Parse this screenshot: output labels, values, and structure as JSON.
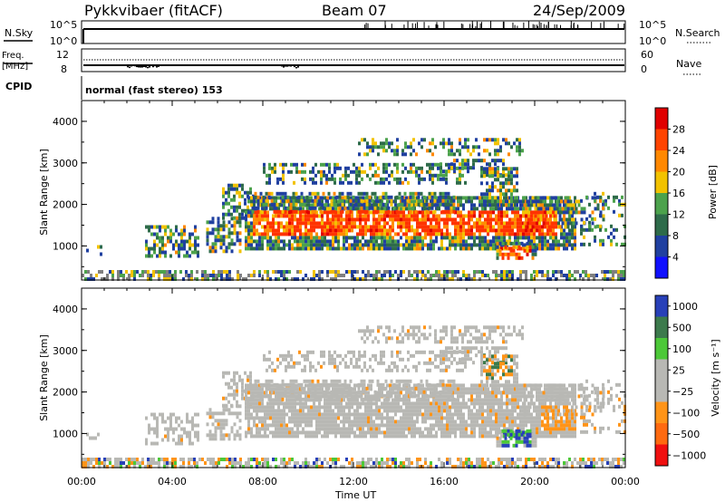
{
  "header": {
    "station": "Pykkvibaer (fitACF)",
    "beam": "Beam 07",
    "date": "24/Sep/2009"
  },
  "status_panels": {
    "nsky": {
      "label": "N.Sky",
      "ticks": [
        "10^5",
        "10^0"
      ]
    },
    "nsearch": {
      "label": "N.Search",
      "ticks": [
        "10^5",
        "10^0"
      ]
    },
    "freq": {
      "label_line1": "Freq.",
      "label_line2": "[MHz]",
      "ticks": [
        "12",
        "8"
      ]
    },
    "nave": {
      "label": "Nave",
      "ticks": [
        "60",
        "0"
      ]
    },
    "cpid": {
      "label": "CPID",
      "value": "normal (fast stereo) 153"
    }
  },
  "chart_data": [
    {
      "type": "heatmap",
      "name": "power",
      "x_ticks": [
        "00:00",
        "04:00",
        "08:00",
        "12:00",
        "16:00",
        "20:00",
        "00:00"
      ],
      "xlim_hours": [
        0,
        24
      ],
      "ylabel": "Slant Range [km]",
      "y_ticks": [
        1000,
        2000,
        3000,
        4000
      ],
      "ylim": [
        180,
        4500
      ],
      "colorbar": {
        "label": "Power [dB]",
        "ticks": [
          "28",
          "24",
          "20",
          "16",
          "12",
          "8",
          "4"
        ],
        "colors": [
          "#e00000",
          "#ff4400",
          "#ff8800",
          "#f2c200",
          "#4ca24c",
          "#2e6b4a",
          "#2040a0",
          "#1010ff"
        ]
      }
    },
    {
      "type": "heatmap",
      "name": "velocity",
      "x_ticks": [
        "00:00",
        "04:00",
        "08:00",
        "12:00",
        "16:00",
        "20:00",
        "00:00"
      ],
      "xlim_hours": [
        0,
        24
      ],
      "xlabel": "Time UT",
      "ylabel": "Slant Range [km]",
      "y_ticks": [
        1000,
        2000,
        3000,
        4000
      ],
      "ylim": [
        180,
        4500
      ],
      "colorbar": {
        "label": "Velocity [m s⁻¹]",
        "ticks": [
          "1000",
          "500",
          "100",
          "25",
          "−25",
          "−100",
          "−500",
          "−1000"
        ],
        "colors": [
          "#2840b8",
          "#3c7a4c",
          "#4cc838",
          "#b8b8b4",
          "#b8b8b4",
          "#ff9418",
          "#ff6a10",
          "#f01010"
        ]
      }
    }
  ]
}
